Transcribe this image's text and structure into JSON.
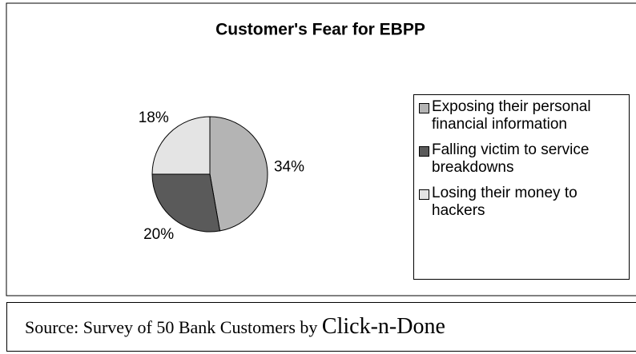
{
  "chart_data": {
    "type": "pie",
    "title": "Customer's Fear for EBPP",
    "categories": [
      "Exposing their personal financial information",
      "Falling victim to service breakdowns",
      "Losing their money to hackers"
    ],
    "values": [
      34,
      20,
      18
    ],
    "value_labels": [
      "34%",
      "20%",
      "18%"
    ],
    "colors": [
      "#b4b4b4",
      "#5a5a5a",
      "#e4e4e4"
    ],
    "legend": "right"
  },
  "source": {
    "text": "Source: Survey of 50 Bank Customers by",
    "brand": "Click-n-Done"
  }
}
